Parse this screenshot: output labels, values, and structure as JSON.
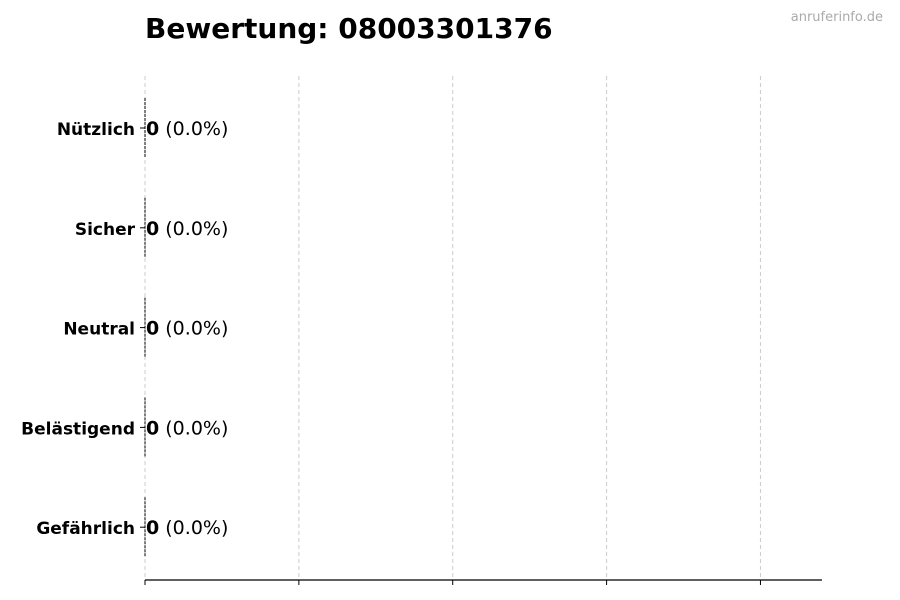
{
  "watermark": "anruferinfo.de",
  "chart_data": {
    "type": "bar",
    "orientation": "horizontal",
    "title": "Bewertung: 08003301376",
    "categories": [
      "Nützlich",
      "Sicher",
      "Neutral",
      "Belästigend",
      "Gefährlich"
    ],
    "values": [
      0,
      0,
      0,
      0,
      0
    ],
    "value_labels": [
      "0",
      "0",
      "0",
      "0",
      "0"
    ],
    "percent_labels": [
      "(0.0%)",
      "(0.0%)",
      "(0.0%)",
      "(0.0%)",
      "(0.0%)"
    ],
    "xlim": [
      0,
      4.4
    ],
    "xticks": [
      0,
      1,
      2,
      3,
      4
    ],
    "xtick_labels_shown": false,
    "grid": "vertical dashed",
    "legend": "none",
    "colors": {
      "bar_edge": "#000000",
      "grid": "#cccccc",
      "watermark": "#aaaaaa"
    }
  }
}
